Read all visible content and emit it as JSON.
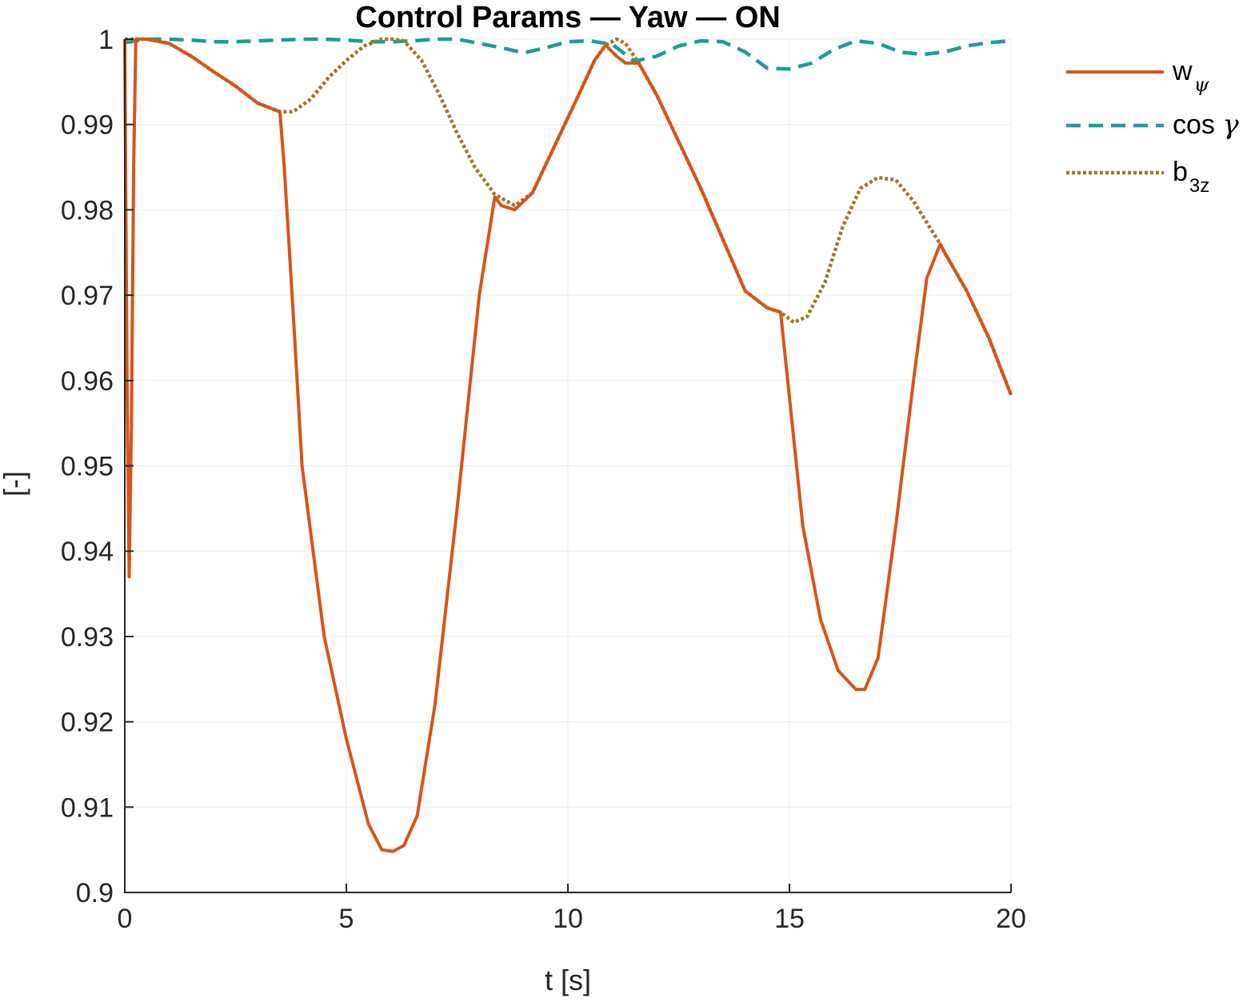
{
  "chart_data": {
    "type": "line",
    "title": "Control Params — Yaw — ON",
    "xlabel": "t [s]",
    "ylabel": "[-]",
    "xlim": [
      0,
      20
    ],
    "ylim": [
      0.9,
      1
    ],
    "xticks": [
      0,
      5,
      10,
      15,
      20
    ],
    "xtick_labels": [
      "0",
      "5",
      "10",
      "15",
      "20"
    ],
    "yticks": [
      0.9,
      0.91,
      0.92,
      0.93,
      0.94,
      0.95,
      0.96,
      0.97,
      0.98,
      0.99,
      1
    ],
    "ytick_labels": [
      "0.9",
      "0.91",
      "0.92",
      "0.93",
      "0.94",
      "0.95",
      "0.96",
      "0.97",
      "0.98",
      "0.99",
      "1"
    ],
    "grid": true,
    "legend_position": "outside-top-right",
    "series": [
      {
        "key": "w_psi",
        "legend_main": "w",
        "legend_sub": "ψ",
        "color": "#D95319",
        "dash": "solid",
        "x": [
          0,
          0.05,
          0.1,
          0.15,
          0.2,
          0.25,
          0.3,
          0.5,
          1,
          1.5,
          2,
          2.5,
          3,
          3.5,
          3.6,
          3.8,
          4,
          4.5,
          5,
          5.5,
          5.8,
          6.05,
          6.3,
          6.6,
          7,
          7.5,
          8,
          8.35,
          8.5,
          8.8,
          9.2,
          9.7,
          10.2,
          10.6,
          10.85,
          11.1,
          11.3,
          11.6,
          12,
          12.5,
          13,
          13.5,
          14,
          14.5,
          14.8,
          15,
          15.3,
          15.7,
          16.1,
          16.5,
          16.7,
          17,
          17.4,
          17.8,
          18.1,
          18.4,
          18.5,
          19,
          19.5,
          20
        ],
        "y": [
          1.0,
          0.96,
          0.937,
          0.955,
          0.985,
          1.0,
          1.0,
          1.0,
          0.9995,
          0.998,
          0.9962,
          0.9945,
          0.9925,
          0.9915,
          0.985,
          0.968,
          0.95,
          0.93,
          0.918,
          0.908,
          0.905,
          0.9048,
          0.9055,
          0.909,
          0.922,
          0.945,
          0.97,
          0.9815,
          0.9805,
          0.98,
          0.982,
          0.9875,
          0.993,
          0.9975,
          0.9993,
          0.998,
          0.9972,
          0.9972,
          0.9935,
          0.988,
          0.9825,
          0.9765,
          0.9705,
          0.9685,
          0.968,
          0.958,
          0.943,
          0.932,
          0.926,
          0.9238,
          0.9238,
          0.9275,
          0.943,
          0.96,
          0.972,
          0.976,
          0.975,
          0.9705,
          0.965,
          0.9583
        ]
      },
      {
        "key": "cos_gamma",
        "legend_main": "cos ",
        "legend_sub": "",
        "legend_symbol": "γ",
        "color": "#1A9E96",
        "dash": "dashed",
        "x": [
          0,
          0.5,
          1,
          1.5,
          2,
          2.5,
          3,
          3.5,
          4,
          4.5,
          5,
          5.5,
          6,
          6.5,
          7,
          7.5,
          8,
          8.5,
          9,
          9.5,
          10,
          10.5,
          11,
          11.5,
          12,
          12.5,
          13,
          13.5,
          14,
          14.5,
          15,
          15.5,
          16,
          16.5,
          17,
          17.5,
          18,
          18.5,
          19,
          19.5,
          20
        ],
        "y": [
          0.9996,
          1.0,
          1.0,
          0.9999,
          0.9997,
          0.9997,
          0.9998,
          0.9999,
          1.0,
          1.0,
          0.9999,
          0.9997,
          0.9997,
          0.9998,
          1.0,
          1.0,
          0.9995,
          0.999,
          0.9984,
          0.999,
          0.9997,
          0.9998,
          0.9994,
          0.9974,
          0.998,
          0.9992,
          0.9998,
          0.9997,
          0.9985,
          0.9966,
          0.9965,
          0.9972,
          0.9988,
          0.9998,
          0.9995,
          0.9985,
          0.9982,
          0.9985,
          0.9992,
          0.9996,
          0.9998
        ]
      },
      {
        "key": "b_3z",
        "legend_main": "b",
        "legend_sub": "3z",
        "color": "#9C7A2A",
        "dash": "dotted",
        "x": [
          0,
          0.3,
          0.5,
          1,
          1.5,
          2,
          2.5,
          3,
          3.5,
          3.8,
          4.2,
          4.6,
          5,
          5.4,
          5.8,
          6.05,
          6.3,
          6.7,
          7.1,
          7.5,
          7.9,
          8.35,
          8.8,
          9.2,
          9.7,
          10.2,
          10.6,
          10.85,
          11.1,
          11.3,
          11.6,
          12,
          12.5,
          13,
          13.5,
          14,
          14.5,
          14.8,
          15.1,
          15.4,
          15.8,
          16.2,
          16.6,
          17,
          17.4,
          17.8,
          18.1,
          18.4,
          18.5,
          19,
          19.5,
          20
        ],
        "y": [
          1.0,
          1.0,
          1.0,
          0.9995,
          0.998,
          0.9962,
          0.9945,
          0.9925,
          0.9915,
          0.9915,
          0.993,
          0.9955,
          0.9975,
          0.9992,
          1.0,
          1.0,
          0.9998,
          0.9975,
          0.9935,
          0.989,
          0.985,
          0.9818,
          0.9805,
          0.982,
          0.9875,
          0.993,
          0.9975,
          0.9993,
          1.0,
          0.9995,
          0.9972,
          0.9935,
          0.988,
          0.9825,
          0.9765,
          0.9705,
          0.9685,
          0.968,
          0.9668,
          0.9675,
          0.9715,
          0.978,
          0.9825,
          0.9838,
          0.9835,
          0.981,
          0.9785,
          0.976,
          0.975,
          0.9705,
          0.965,
          0.9583
        ]
      }
    ]
  }
}
